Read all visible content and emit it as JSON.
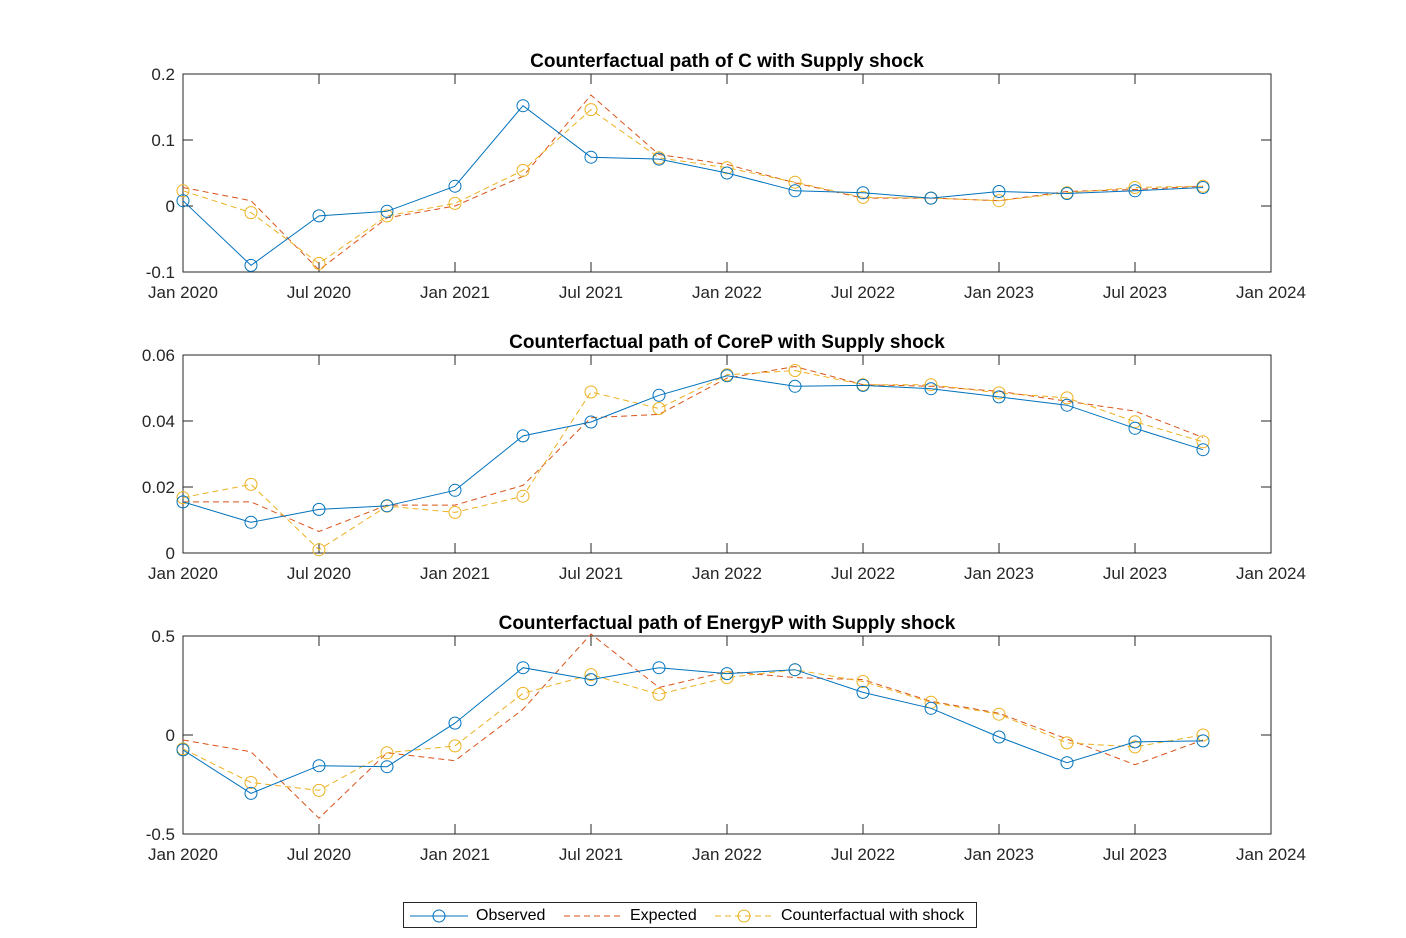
{
  "chart_data": [
    {
      "type": "line",
      "title": "Counterfactual path of C with Supply shock",
      "xlabel": "",
      "ylabel": "",
      "x": [
        "2020-01",
        "2020-04",
        "2020-07",
        "2020-10",
        "2021-01",
        "2021-04",
        "2021-07",
        "2021-10",
        "2022-01",
        "2022-04",
        "2022-07",
        "2022-10",
        "2023-01",
        "2023-04",
        "2023-07",
        "2023-10"
      ],
      "xlim": [
        "2020-01",
        "2024-01"
      ],
      "xtick_labels": [
        "Jan 2020",
        "Jul 2020",
        "Jan 2021",
        "Jul 2021",
        "Jan 2022",
        "Jul 2022",
        "Jan 2023",
        "Jul 2023",
        "Jan 2024"
      ],
      "ylim": [
        -0.1,
        0.2
      ],
      "ytick_labels": [
        "-0.1",
        "0",
        "0.1",
        "0.2"
      ],
      "grid": false,
      "series": [
        {
          "name": "Observed",
          "values": [
            0.008,
            -0.09,
            -0.015,
            -0.008,
            0.03,
            0.152,
            0.074,
            0.071,
            0.05,
            0.023,
            0.02,
            0.012,
            0.022,
            0.019,
            0.023,
            0.028
          ]
        },
        {
          "name": "Expected",
          "values": [
            0.028,
            0.008,
            -0.097,
            -0.018,
            0.0,
            0.045,
            0.168,
            0.078,
            0.063,
            0.035,
            0.012,
            0.012,
            0.008,
            0.022,
            0.025,
            0.03
          ]
        },
        {
          "name": "Counterfactual with shock",
          "values": [
            0.023,
            -0.01,
            -0.087,
            -0.015,
            0.004,
            0.054,
            0.146,
            0.073,
            0.058,
            0.036,
            0.013,
            0.012,
            0.008,
            0.02,
            0.028,
            0.03
          ]
        }
      ]
    },
    {
      "type": "line",
      "title": "Counterfactual path of CoreP with Supply shock",
      "xlabel": "",
      "ylabel": "",
      "x": [
        "2020-01",
        "2020-04",
        "2020-07",
        "2020-10",
        "2021-01",
        "2021-04",
        "2021-07",
        "2021-10",
        "2022-01",
        "2022-04",
        "2022-07",
        "2022-10",
        "2023-01",
        "2023-04",
        "2023-07",
        "2023-10"
      ],
      "xlim": [
        "2020-01",
        "2024-01"
      ],
      "xtick_labels": [
        "Jan 2020",
        "Jul 2020",
        "Jan 2021",
        "Jul 2021",
        "Jan 2022",
        "Jul 2022",
        "Jan 2023",
        "Jul 2023",
        "Jan 2024"
      ],
      "ylim": [
        0,
        0.06
      ],
      "ytick_labels": [
        "0",
        "0.02",
        "0.04",
        "0.06"
      ],
      "grid": false,
      "series": [
        {
          "name": "Observed",
          "values": [
            0.0155,
            0.0093,
            0.0132,
            0.0143,
            0.019,
            0.0355,
            0.0397,
            0.0478,
            0.0537,
            0.0505,
            0.0508,
            0.0498,
            0.0473,
            0.0448,
            0.0378,
            0.0313
          ]
        },
        {
          "name": "Expected",
          "values": [
            0.0155,
            0.0155,
            0.0065,
            0.0145,
            0.0145,
            0.0205,
            0.041,
            0.042,
            0.053,
            0.0565,
            0.051,
            0.0505,
            0.049,
            0.046,
            0.043,
            0.035
          ]
        },
        {
          "name": "Counterfactual with shock",
          "values": [
            0.0168,
            0.0208,
            0.001,
            0.0142,
            0.0123,
            0.0172,
            0.0488,
            0.0438,
            0.054,
            0.0553,
            0.051,
            0.051,
            0.0485,
            0.047,
            0.0398,
            0.0337
          ]
        }
      ]
    },
    {
      "type": "line",
      "title": "Counterfactual path of EnergyP with Supply shock",
      "xlabel": "",
      "ylabel": "",
      "x": [
        "2020-01",
        "2020-04",
        "2020-07",
        "2020-10",
        "2021-01",
        "2021-04",
        "2021-07",
        "2021-10",
        "2022-01",
        "2022-04",
        "2022-07",
        "2022-10",
        "2023-01",
        "2023-04",
        "2023-07",
        "2023-10"
      ],
      "xlim": [
        "2020-01",
        "2024-01"
      ],
      "xtick_labels": [
        "Jan 2020",
        "Jul 2020",
        "Jan 2021",
        "Jul 2021",
        "Jan 2022",
        "Jul 2022",
        "Jan 2023",
        "Jul 2023",
        "Jan 2024"
      ],
      "ylim": [
        -0.5,
        0.5
      ],
      "ytick_labels": [
        "-0.5",
        "0",
        "0.5"
      ],
      "grid": false,
      "series": [
        {
          "name": "Observed",
          "values": [
            -0.075,
            -0.295,
            -0.155,
            -0.16,
            0.06,
            0.34,
            0.28,
            0.34,
            0.31,
            0.33,
            0.215,
            0.135,
            -0.01,
            -0.14,
            -0.035,
            -0.03
          ]
        },
        {
          "name": "Expected",
          "values": [
            -0.025,
            -0.085,
            -0.42,
            -0.09,
            -0.13,
            0.13,
            0.51,
            0.24,
            0.32,
            0.29,
            0.28,
            0.17,
            0.11,
            -0.02,
            -0.15,
            -0.025
          ]
        },
        {
          "name": "Counterfactual with shock",
          "values": [
            -0.07,
            -0.24,
            -0.28,
            -0.09,
            -0.055,
            0.21,
            0.305,
            0.205,
            0.29,
            0.33,
            0.27,
            0.165,
            0.105,
            -0.04,
            -0.06,
            0.0
          ]
        }
      ]
    }
  ],
  "legend": {
    "placement": "bottom-center",
    "entries": [
      {
        "name": "Observed",
        "color": "#0072BD",
        "line": "solid",
        "marker": "circle"
      },
      {
        "name": "Expected",
        "color": "#D95319",
        "line": "dashed",
        "marker": "none"
      },
      {
        "name": "Counterfactual with shock",
        "color": "#EDB120",
        "line": "dashed",
        "marker": "circle"
      }
    ]
  }
}
